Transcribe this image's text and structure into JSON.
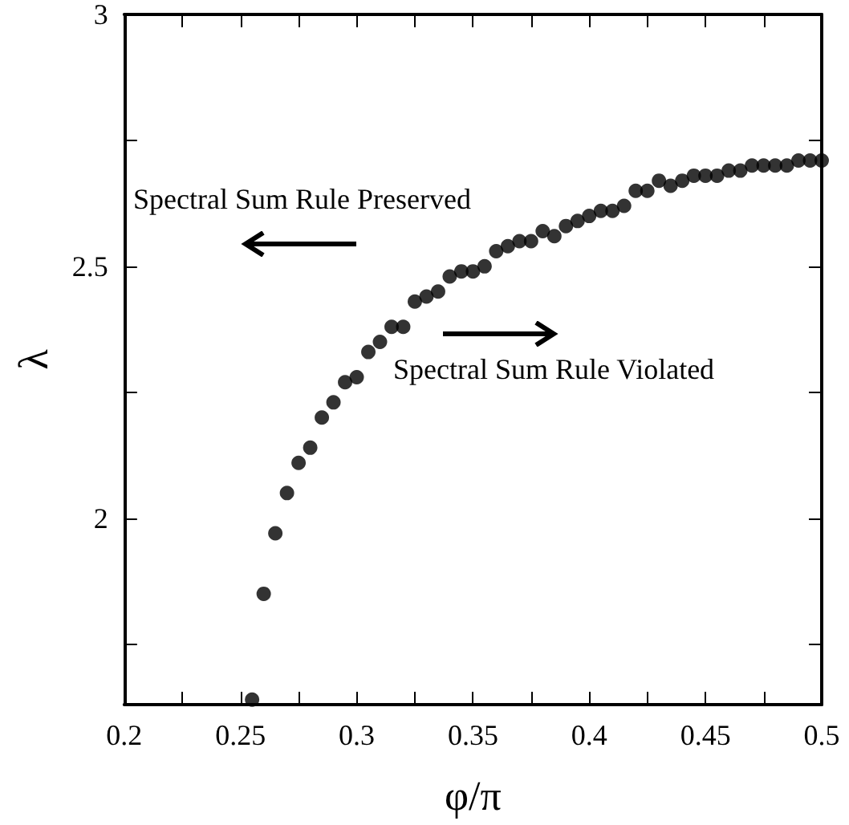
{
  "chart_data": {
    "type": "scatter",
    "xlabel": "φ/π",
    "ylabel": "λ",
    "x": [
      0.255,
      0.26,
      0.265,
      0.27,
      0.275,
      0.28,
      0.285,
      0.29,
      0.295,
      0.3,
      0.305,
      0.31,
      0.315,
      0.32,
      0.325,
      0.33,
      0.335,
      0.34,
      0.345,
      0.35,
      0.355,
      0.36,
      0.365,
      0.37,
      0.375,
      0.38,
      0.385,
      0.39,
      0.395,
      0.4,
      0.405,
      0.41,
      0.415,
      0.42,
      0.425,
      0.43,
      0.435,
      0.44,
      0.445,
      0.45,
      0.455,
      0.46,
      0.465,
      0.47,
      0.475,
      0.48,
      0.485,
      0.49,
      0.495,
      0.5
    ],
    "values": [
      1.64,
      1.85,
      1.97,
      2.05,
      2.11,
      2.14,
      2.2,
      2.23,
      2.27,
      2.28,
      2.33,
      2.35,
      2.38,
      2.38,
      2.43,
      2.44,
      2.45,
      2.48,
      2.49,
      2.49,
      2.5,
      2.53,
      2.54,
      2.55,
      2.55,
      2.57,
      2.56,
      2.58,
      2.59,
      2.6,
      2.61,
      2.61,
      2.62,
      2.65,
      2.65,
      2.67,
      2.66,
      2.67,
      2.68,
      2.68,
      2.68,
      2.69,
      2.69,
      2.7,
      2.7,
      2.7,
      2.7,
      2.71,
      2.71,
      2.71
    ],
    "color": "#000000",
    "marker": "circle",
    "xlim": [
      0.2,
      0.5
    ],
    "xticks": [
      0.2,
      {
        "value": 0.225,
        "label": null
      },
      0.25,
      {
        "value": 0.275,
        "label": null
      },
      0.3,
      {
        "value": 0.325,
        "label": null
      },
      0.35,
      {
        "value": 0.375,
        "label": null
      },
      0.4,
      {
        "value": 0.425,
        "label": null
      },
      0.45,
      {
        "value": 0.475,
        "label": null
      },
      0.5
    ],
    "ylim": [
      1.63,
      3
    ],
    "yticks": [
      {
        "value": 1.75,
        "label": null
      },
      2,
      {
        "value": 2.25,
        "label": null
      },
      2.5,
      {
        "value": 2.75,
        "label": null
      },
      3
    ],
    "annotations": [
      "Spectral Sum Rule Preserved",
      "Spectral Sum Rule Violated"
    ]
  }
}
